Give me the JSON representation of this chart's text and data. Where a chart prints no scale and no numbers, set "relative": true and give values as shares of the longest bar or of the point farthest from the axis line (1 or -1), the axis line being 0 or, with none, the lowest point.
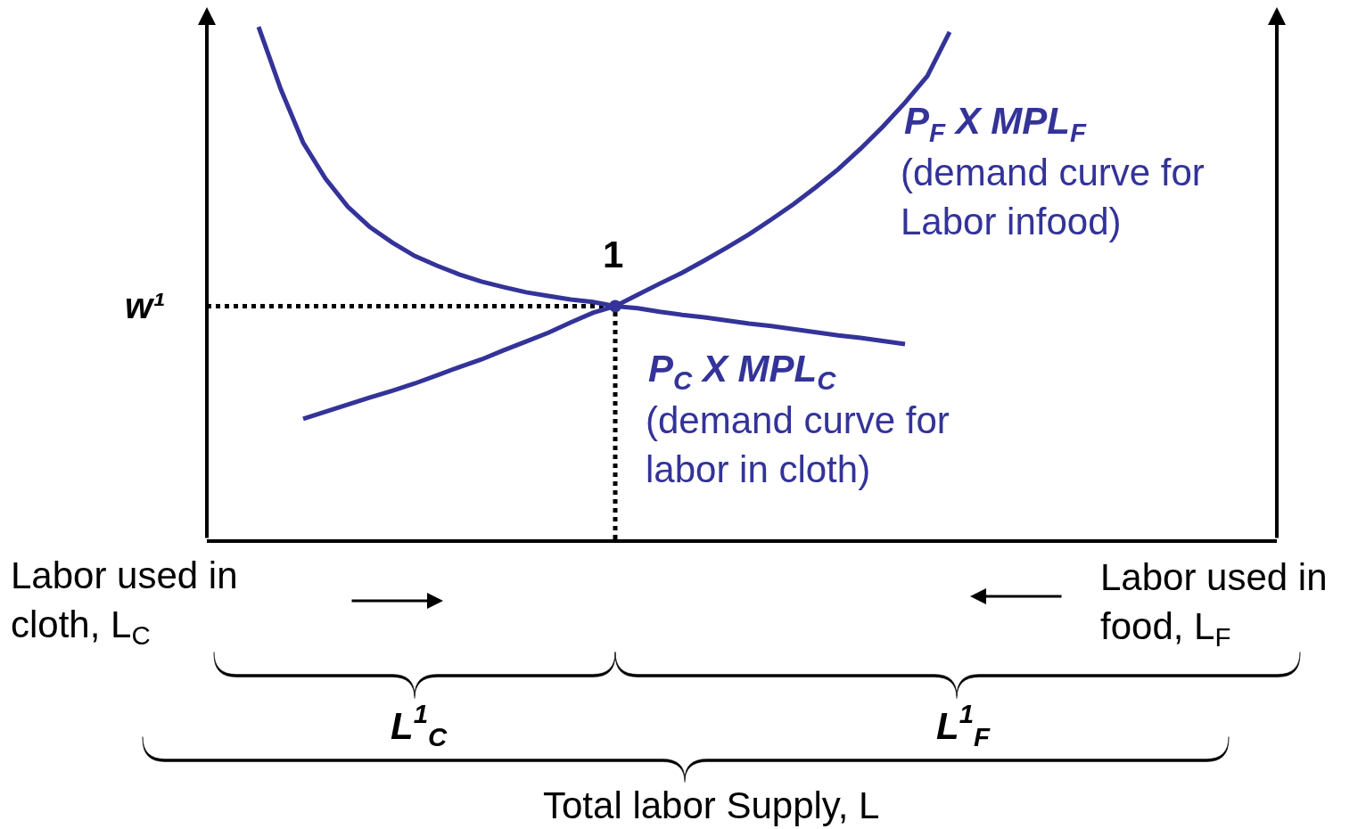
{
  "chart_data": {
    "type": "line",
    "relative": true,
    "legend": false,
    "grid": false,
    "line_style": "solid",
    "categories": [
      null,
      null,
      null,
      null,
      null,
      null,
      null,
      null,
      null,
      null,
      null,
      null,
      null,
      null,
      null,
      null,
      null,
      null,
      null,
      null,
      null,
      null,
      null,
      null,
      null,
      null,
      null,
      null,
      null,
      null,
      null,
      null
    ],
    "series": [
      {
        "name": "P$_{C}$ X MPL$_{C}$",
        "color": "#333399",
        "marker": "none",
        "values": [
          1.0,
          0.878,
          0.774,
          0.704,
          0.649,
          0.609,
          0.579,
          0.553,
          0.534,
          0.517,
          0.503,
          0.492,
          0.482,
          0.475,
          0.468,
          0.463,
          0.455,
          0.451,
          0.444,
          0.438,
          0.433,
          0.427,
          0.421,
          0.416,
          0.41,
          0.404,
          0.398,
          0.393,
          0.387,
          0.381,
          null,
          null
        ]
      },
      {
        "name": "P$_{F}$ X MPL$_{F}$",
        "color": "#333399",
        "marker": "none",
        "values": [
          null,
          null,
          0.235,
          0.249,
          0.263,
          0.277,
          0.29,
          0.304,
          0.32,
          0.336,
          0.351,
          0.369,
          0.386,
          0.403,
          0.423,
          0.442,
          0.455,
          0.477,
          0.499,
          0.52,
          0.544,
          0.569,
          0.595,
          0.624,
          0.654,
          0.687,
          0.722,
          0.762,
          0.805,
          0.852,
          0.904,
          0.99
        ]
      }
    ],
    "ref_lines": [
      {
        "axis": "y",
        "value": 0.455,
        "label": "w¹",
        "color": "#000000",
        "line_style": "dotted"
      }
    ],
    "annotations": [
      "(demand curve for\nlabor in cloth)",
      "(demand curve for\nLabor infood)",
      "1",
      "Labor used in\ncloth, L$_{C}$",
      "Labor used in\nfood, L$_{F}$",
      "L$^{1}$$_{C}$",
      "L$^{1}$$_{F}$",
      "Total labor Supply, L"
    ]
  }
}
